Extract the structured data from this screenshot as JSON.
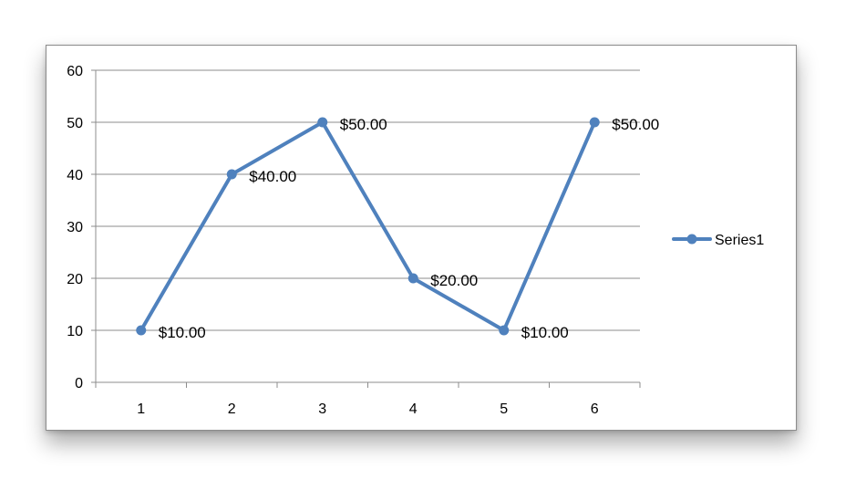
{
  "chart_data": {
    "type": "line",
    "title": "",
    "xlabel": "",
    "ylabel": "",
    "categories": [
      "1",
      "2",
      "3",
      "4",
      "5",
      "6"
    ],
    "series": [
      {
        "name": "Series1",
        "values": [
          10,
          40,
          50,
          20,
          10,
          50
        ],
        "data_labels": [
          "$10.00",
          "$40.00",
          "$50.00",
          "$20.00",
          "$10.00",
          "$50.00"
        ],
        "color": "#4f81bd"
      }
    ],
    "ylim": [
      0,
      60
    ],
    "yticks": [
      "0",
      "10",
      "20",
      "30",
      "40",
      "50",
      "60"
    ],
    "grid": true,
    "gridline_color": "#8c8c8c",
    "legend_position": "right",
    "markers": true
  }
}
